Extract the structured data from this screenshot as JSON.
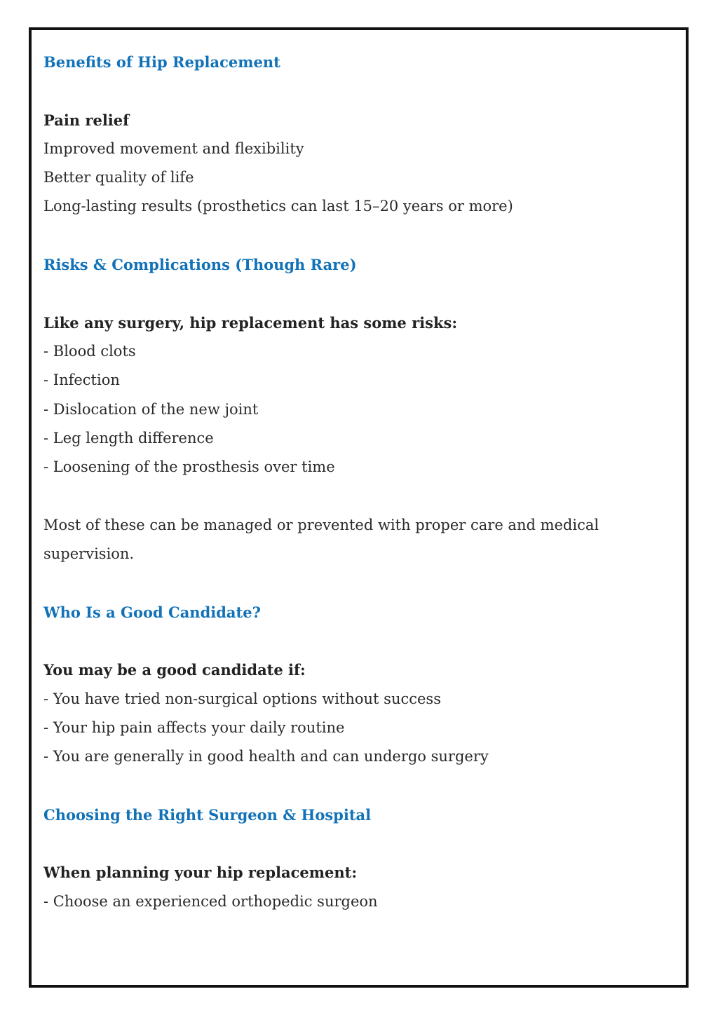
{
  "sections": [
    {
      "heading": "Benefits of Hip Replacement",
      "lead": "Pain relief",
      "items": [
        "Improved movement and flexibility",
        "Better quality of life",
        "Long-lasting results (prosthetics can last 15–20 years or more)"
      ]
    },
    {
      "heading": "Risks & Complications (Though Rare)",
      "lead": "Like any surgery, hip replacement has some risks:",
      "items": [
        "- Blood clots",
        "- Infection",
        "- Dislocation of the new joint",
        "- Leg length difference",
        "- Loosening of the prosthesis over time"
      ],
      "note": [
        "Most of these can be managed or prevented with proper care and medical",
        "supervision."
      ]
    },
    {
      "heading": "Who Is a Good Candidate?",
      "lead": "You may be a good candidate if:",
      "items": [
        "- You have tried non-surgical options without success",
        "- Your hip pain affects your daily routine",
        "- You are generally in good health and can undergo surgery"
      ]
    },
    {
      "heading": "Choosing the Right Surgeon & Hospital",
      "lead": "When planning your hip replacement:",
      "items": [
        "- Choose an experienced orthopedic surgeon"
      ]
    }
  ],
  "colors": {
    "heading": "#1272b8",
    "text": "#2a2a2a",
    "border": "#111111"
  }
}
